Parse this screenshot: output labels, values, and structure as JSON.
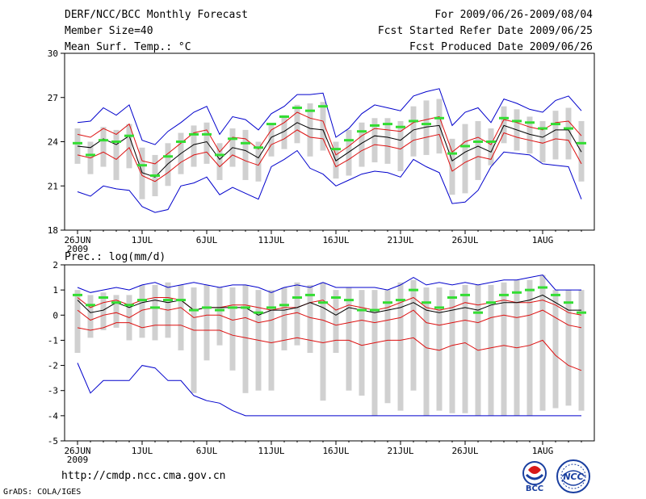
{
  "header": {
    "title": "DERF/NCC/BCC Monthly Forecast",
    "member_size": "Member Size=40",
    "variable": "Mean Surf. Temp.: °C",
    "period": "For 2009/06/26-2009/08/04",
    "refer_date": "Fcst Started Refer Date 2009/06/25",
    "produced_date": "Fcst Produced Date 2009/06/26"
  },
  "footer": {
    "url": "http://cmdp.ncc.cma.gov.cn",
    "credit": "GrADS: COLA/IGES",
    "logo_bcc_label": "BCC",
    "logo_ncc_label": "NCC"
  },
  "colors": {
    "max_min": "#0000cc",
    "spread": "#dd1111",
    "mean": "#000000",
    "observed": "#33dd33",
    "box": "#d0d0d0"
  },
  "chart_data": [
    {
      "type": "line",
      "title": "Mean Surf. Temp.: °C",
      "ylim": [
        18,
        30
      ],
      "yticks": [
        18,
        21,
        24,
        27,
        30
      ],
      "xticks": [
        {
          "day": 0,
          "label": "26JUN"
        },
        {
          "day": 5,
          "label": "1JUL"
        },
        {
          "day": 10,
          "label": "6JUL"
        },
        {
          "day": 15,
          "label": "11JUL"
        },
        {
          "day": 20,
          "label": "16JUL"
        },
        {
          "day": 25,
          "label": "21JUL"
        },
        {
          "day": 30,
          "label": "26JUL"
        },
        {
          "day": 36,
          "label": "1AUG"
        }
      ],
      "year_label": "2009",
      "series": [
        {
          "name": "max",
          "values": [
            25.3,
            25.4,
            26.3,
            25.8,
            26.5,
            24.1,
            23.8,
            24.7,
            25.3,
            26.0,
            26.4,
            24.5,
            25.7,
            25.5,
            24.8,
            25.9,
            26.4,
            27.2,
            27.2,
            27.3,
            24.3,
            24.9,
            25.9,
            26.5,
            26.3,
            26.1,
            27.1,
            27.4,
            27.6,
            25.1,
            26.0,
            26.3,
            25.3,
            26.9,
            26.6,
            26.2,
            26.0,
            26.8,
            27.1,
            26.1
          ]
        },
        {
          "name": "upper",
          "values": [
            24.5,
            24.3,
            24.9,
            24.5,
            25.2,
            22.7,
            22.5,
            23.2,
            23.9,
            24.6,
            24.8,
            23.3,
            24.3,
            24.2,
            23.5,
            24.8,
            25.3,
            26.0,
            25.6,
            25.4,
            23.1,
            23.7,
            24.4,
            24.9,
            24.8,
            24.7,
            25.3,
            25.5,
            25.7,
            23.3,
            24.0,
            24.3,
            23.8,
            25.5,
            25.3,
            25.0,
            24.8,
            25.3,
            25.4,
            24.4
          ]
        },
        {
          "name": "mean",
          "values": [
            23.7,
            23.6,
            24.2,
            23.8,
            24.4,
            21.9,
            21.6,
            22.5,
            23.2,
            23.8,
            24.0,
            22.8,
            23.6,
            23.4,
            22.9,
            24.3,
            24.7,
            25.3,
            24.9,
            24.8,
            22.7,
            23.3,
            23.9,
            24.4,
            24.3,
            24.1,
            24.8,
            25.0,
            25.1,
            22.7,
            23.3,
            23.7,
            23.3,
            25.1,
            24.8,
            24.5,
            24.3,
            24.8,
            24.8,
            23.3
          ]
        },
        {
          "name": "lower",
          "values": [
            23.1,
            22.9,
            23.3,
            22.8,
            23.6,
            21.7,
            21.3,
            21.9,
            22.6,
            23.1,
            23.3,
            22.3,
            23.1,
            22.7,
            22.4,
            23.8,
            24.2,
            24.8,
            24.3,
            24.2,
            22.3,
            22.8,
            23.4,
            23.8,
            23.7,
            23.5,
            24.1,
            24.3,
            24.5,
            22.0,
            22.6,
            23.0,
            22.8,
            24.6,
            24.3,
            24.1,
            23.9,
            24.2,
            24.1,
            22.5
          ]
        },
        {
          "name": "min",
          "values": [
            20.6,
            20.3,
            21.0,
            20.8,
            20.7,
            19.6,
            19.2,
            19.4,
            21.0,
            21.2,
            21.6,
            20.4,
            20.9,
            20.5,
            20.1,
            22.3,
            22.8,
            23.4,
            22.2,
            21.8,
            21.0,
            21.4,
            21.8,
            22.0,
            21.9,
            21.6,
            22.8,
            22.3,
            21.9,
            19.8,
            19.9,
            20.7,
            22.3,
            23.3,
            23.2,
            23.1,
            22.5,
            22.4,
            22.3,
            20.1
          ]
        },
        {
          "name": "box_top",
          "values": [
            24.9,
            24.0,
            25.0,
            24.8,
            25.2,
            23.6,
            23.1,
            23.9,
            24.6,
            25.1,
            25.3,
            23.9,
            24.9,
            24.8,
            24.0,
            25.2,
            25.8,
            26.5,
            26.6,
            26.7,
            24.0,
            24.8,
            25.3,
            25.6,
            25.6,
            25.4,
            26.4,
            26.8,
            26.9,
            24.2,
            25.2,
            25.4,
            24.9,
            26.4,
            26.2,
            25.7,
            25.4,
            26.1,
            26.3,
            25.4
          ]
        },
        {
          "name": "box_bottom",
          "values": [
            22.5,
            21.8,
            22.3,
            21.4,
            22.2,
            20.1,
            20.3,
            21.0,
            21.8,
            22.3,
            22.5,
            21.4,
            22.3,
            21.4,
            21.3,
            23.0,
            23.5,
            23.9,
            23.0,
            23.4,
            21.5,
            21.7,
            22.3,
            22.6,
            22.5,
            22.0,
            23.0,
            23.1,
            23.2,
            20.4,
            20.5,
            21.4,
            22.4,
            23.9,
            23.4,
            23.2,
            22.6,
            22.8,
            22.8,
            21.3
          ]
        },
        {
          "name": "observed",
          "values": [
            23.9,
            23.1,
            24.1,
            24.0,
            24.4,
            22.4,
            21.7,
            23.0,
            24.0,
            24.5,
            24.5,
            23.1,
            24.2,
            23.9,
            23.6,
            25.2,
            25.7,
            26.3,
            26.1,
            26.4,
            23.5,
            24.1,
            24.7,
            25.1,
            25.2,
            25.0,
            25.4,
            25.2,
            25.6,
            23.2,
            23.7,
            24.0,
            24.0,
            25.6,
            25.4,
            25.3,
            24.9,
            25.2,
            24.9,
            23.9
          ]
        }
      ]
    },
    {
      "type": "line",
      "title": "Prec.: log(mm/d)",
      "ylim": [
        -5,
        2
      ],
      "yticks": [
        -5,
        -4,
        -3,
        -2,
        -1,
        0,
        1,
        2
      ],
      "xticks": [
        {
          "day": 0,
          "label": "26JUN"
        },
        {
          "day": 5,
          "label": "1JUL"
        },
        {
          "day": 10,
          "label": "6JUL"
        },
        {
          "day": 15,
          "label": "11JUL"
        },
        {
          "day": 20,
          "label": "16JUL"
        },
        {
          "day": 25,
          "label": "21JUL"
        },
        {
          "day": 30,
          "label": "26JUL"
        },
        {
          "day": 36,
          "label": "1AUG"
        }
      ],
      "year_label": "2009",
      "series": [
        {
          "name": "max",
          "values": [
            1.1,
            0.9,
            1.0,
            1.1,
            1.0,
            1.2,
            1.3,
            1.1,
            1.2,
            1.3,
            1.2,
            1.1,
            1.2,
            1.2,
            1.1,
            0.9,
            1.1,
            1.2,
            1.1,
            1.3,
            1.1,
            1.1,
            1.1,
            1.1,
            1.0,
            1.2,
            1.5,
            1.2,
            1.3,
            1.2,
            1.3,
            1.2,
            1.3,
            1.4,
            1.4,
            1.5,
            1.6,
            1.0,
            1.0,
            1.0
          ]
        },
        {
          "name": "upper",
          "values": [
            0.7,
            0.3,
            0.5,
            0.6,
            0.4,
            0.6,
            0.7,
            0.7,
            0.6,
            0.2,
            0.3,
            0.3,
            0.4,
            0.4,
            0.3,
            0.2,
            0.3,
            0.3,
            0.5,
            0.6,
            0.2,
            0.4,
            0.3,
            0.2,
            0.3,
            0.5,
            0.7,
            0.3,
            0.2,
            0.3,
            0.5,
            0.4,
            0.5,
            0.6,
            0.5,
            0.5,
            0.6,
            0.4,
            0.1,
            0.0
          ]
        },
        {
          "name": "mean",
          "values": [
            0.6,
            0.1,
            0.2,
            0.5,
            0.3,
            0.5,
            0.6,
            0.5,
            0.6,
            0.2,
            0.3,
            0.3,
            0.3,
            0.3,
            0.0,
            0.2,
            0.2,
            0.3,
            0.5,
            0.3,
            0.0,
            0.3,
            0.2,
            0.1,
            0.2,
            0.3,
            0.5,
            0.2,
            0.1,
            0.2,
            0.3,
            0.2,
            0.4,
            0.5,
            0.5,
            0.6,
            0.8,
            0.5,
            0.2,
            0.2
          ]
        },
        {
          "name": "lower",
          "values": [
            0.2,
            -0.2,
            0.0,
            0.1,
            -0.1,
            0.2,
            0.3,
            0.2,
            0.3,
            -0.1,
            0.0,
            0.0,
            -0.2,
            -0.1,
            -0.3,
            -0.2,
            0.0,
            0.1,
            -0.1,
            -0.2,
            -0.4,
            -0.3,
            -0.2,
            -0.3,
            -0.2,
            -0.1,
            0.2,
            -0.3,
            -0.4,
            -0.3,
            -0.2,
            -0.3,
            -0.1,
            0.0,
            -0.1,
            0.0,
            0.2,
            -0.1,
            -0.4,
            -0.5
          ]
        },
        {
          "name": "spread_low",
          "values": [
            -0.5,
            -0.6,
            -0.5,
            -0.3,
            -0.3,
            -0.5,
            -0.4,
            -0.4,
            -0.4,
            -0.6,
            -0.6,
            -0.6,
            -0.8,
            -0.9,
            -1.0,
            -1.1,
            -1.0,
            -0.9,
            -1.0,
            -1.1,
            -1.0,
            -1.0,
            -1.2,
            -1.1,
            -1.0,
            -1.0,
            -0.9,
            -1.3,
            -1.4,
            -1.2,
            -1.1,
            -1.4,
            -1.3,
            -1.2,
            -1.3,
            -1.2,
            -1.0,
            -1.6,
            -2.0,
            -2.2
          ]
        },
        {
          "name": "min",
          "values": [
            -1.9,
            -3.1,
            -2.6,
            -2.6,
            -2.6,
            -2.0,
            -2.1,
            -2.6,
            -2.6,
            -3.2,
            -3.4,
            -3.5,
            -3.8,
            -4.0,
            -4.0,
            -4.0,
            -4.0,
            -4.0,
            -4.0,
            -4.0,
            -4.0,
            -4.0,
            -4.0,
            -4.0,
            -4.0,
            -4.0,
            -4.0,
            -4.0,
            -4.0,
            -4.0,
            -4.0,
            -4.0,
            -4.0,
            -4.0,
            -4.0,
            -4.0,
            -4.0,
            -4.0,
            -4.0,
            -4.0
          ]
        },
        {
          "name": "box_top",
          "values": [
            1.0,
            0.8,
            0.9,
            0.8,
            0.8,
            1.2,
            1.2,
            1.3,
            1.2,
            1.1,
            1.2,
            1.1,
            1.1,
            1.2,
            1.0,
            1.0,
            1.1,
            1.3,
            1.2,
            1.3,
            1.0,
            1.1,
            1.0,
            1.0,
            1.0,
            1.3,
            1.4,
            1.1,
            1.1,
            1.0,
            1.2,
            1.2,
            1.2,
            1.3,
            1.4,
            1.4,
            1.6,
            1.0,
            1.0,
            1.0
          ]
        },
        {
          "name": "box_bottom",
          "values": [
            -1.5,
            -0.9,
            -0.6,
            -0.5,
            -1.0,
            -0.9,
            -1.0,
            -0.9,
            -1.4,
            -3.1,
            -1.8,
            -1.2,
            -2.2,
            -3.1,
            -3.0,
            -3.0,
            -1.4,
            -1.2,
            -1.5,
            -3.4,
            -1.5,
            -3.0,
            -3.2,
            -4.0,
            -3.5,
            -3.8,
            -3.0,
            -4.0,
            -3.8,
            -3.9,
            -3.9,
            -4.0,
            -4.0,
            -4.0,
            -4.0,
            -4.0,
            -3.8,
            -3.7,
            -3.6,
            -3.8
          ]
        },
        {
          "name": "observed",
          "values": [
            0.8,
            0.4,
            0.7,
            0.5,
            0.4,
            0.6,
            0.3,
            0.6,
            0.6,
            0.2,
            0.3,
            0.2,
            0.3,
            0.3,
            0.1,
            0.3,
            0.4,
            0.7,
            0.8,
            0.5,
            0.7,
            0.6,
            0.2,
            0.2,
            0.5,
            0.6,
            1.0,
            0.5,
            0.3,
            0.7,
            0.8,
            0.1,
            0.5,
            0.8,
            0.9,
            1.0,
            1.1,
            0.8,
            0.5,
            0.1
          ]
        }
      ]
    }
  ]
}
